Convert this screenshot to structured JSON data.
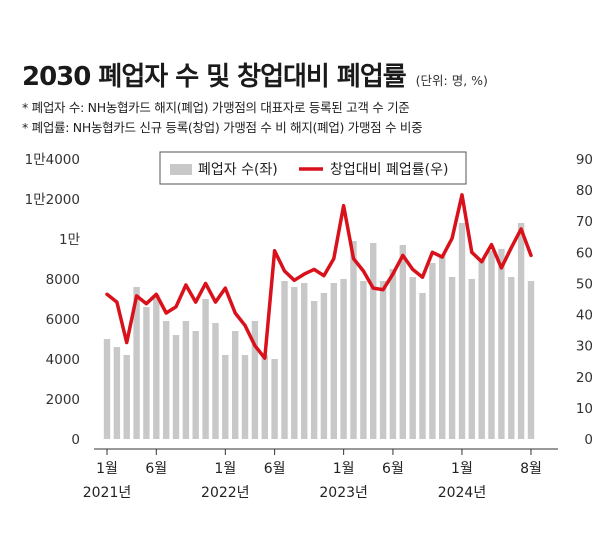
{
  "header": {
    "title": "2030 폐업자 수 및 창업대비 폐업률",
    "unit": "(단위: 명, %)"
  },
  "notes": [
    "* 폐업자 수: NH농협카드 해지(폐업) 가맹점의 대표자로 등록된 고객 수 기준",
    "* 폐업률: NH농협카드 신규 등록(창업) 가맹점 수 비 해지(폐업) 가맹점 수 비중"
  ],
  "colors": {
    "bar": "#c8c8c8",
    "line": "#d9111b"
  },
  "chart_data": {
    "type": "bar+line",
    "legend": {
      "placement": "top-center",
      "items": [
        "폐업자 수(좌)",
        "창업대비 폐업률(우)"
      ]
    },
    "x_tick_labels": [
      {
        "index": 0,
        "month": "1월",
        "year": "2021년"
      },
      {
        "index": 5,
        "month": "6월"
      },
      {
        "index": 12,
        "month": "1월",
        "year": "2022년"
      },
      {
        "index": 17,
        "month": "6월"
      },
      {
        "index": 24,
        "month": "1월",
        "year": "2023년"
      },
      {
        "index": 29,
        "month": "6월"
      },
      {
        "index": 36,
        "month": "1월",
        "year": "2024년"
      },
      {
        "index": 43,
        "month": "8월"
      }
    ],
    "left_axis": {
      "ylim": [
        0,
        14000
      ],
      "ticks": [
        "0",
        "2000",
        "4000",
        "6000",
        "8000",
        "1만",
        "1만2000",
        "1만4000"
      ]
    },
    "right_axis": {
      "ylim": [
        0,
        90
      ],
      "ticks": [
        "0",
        "10",
        "20",
        "30",
        "40",
        "50",
        "60",
        "70",
        "80",
        "90"
      ]
    },
    "series": [
      {
        "name": "폐업자 수(좌)",
        "type": "bar",
        "axis": "left",
        "values": [
          5000,
          4600,
          4200,
          7600,
          6600,
          7200,
          5900,
          5200,
          5900,
          5400,
          7000,
          5800,
          4200,
          5400,
          4200,
          5900,
          4200,
          4000,
          7900,
          7600,
          7800,
          6900,
          7300,
          7800,
          8000,
          9900,
          7900,
          9800,
          7900,
          8500,
          9700,
          8100,
          7300,
          8800,
          9200,
          8100,
          10800,
          8000,
          9000,
          9400,
          9500,
          8100,
          10800,
          7900
        ]
      },
      {
        "name": "창업대비 폐업률(우)",
        "type": "line",
        "axis": "right",
        "values": [
          46.5,
          44.0,
          31.0,
          46.0,
          43.5,
          46.5,
          40.5,
          42.5,
          49.5,
          44.0,
          50.0,
          44.0,
          48.5,
          40.5,
          36.5,
          30.0,
          26.0,
          60.5,
          54.0,
          51.0,
          53.0,
          54.5,
          52.5,
          58.0,
          75.0,
          58.0,
          54.0,
          48.5,
          48.0,
          53.0,
          59.0,
          54.5,
          52.0,
          60.0,
          58.5,
          64.5,
          78.5,
          60.0,
          57.0,
          62.5,
          55.0,
          61.5,
          67.5,
          59.0
        ]
      }
    ]
  }
}
